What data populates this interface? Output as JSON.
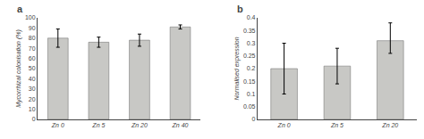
{
  "chart_data": [
    {
      "type": "bar",
      "title": "a",
      "categories": [
        "Zn 0",
        "Zn 5",
        "Zn 20",
        "Zn 40"
      ],
      "values": [
        80,
        76,
        78,
        91
      ],
      "errors": [
        9,
        5,
        6,
        2
      ],
      "ylabel": "Mycorrhizal colonisation (%)",
      "ylim": [
        0,
        100
      ],
      "yticks": [
        0,
        10,
        20,
        30,
        40,
        50,
        60,
        70,
        80,
        90,
        100
      ],
      "color": "#c8c8c5",
      "grid": false
    },
    {
      "type": "bar",
      "title": "b",
      "categories": [
        "Zn 0",
        "Zn 5",
        "Zn 20"
      ],
      "values": [
        0.2,
        0.21,
        0.31
      ],
      "errors_upper": [
        0.1,
        0.07,
        0.07
      ],
      "errors_lower": [
        0.1,
        0.07,
        0.05
      ],
      "ylabel": "Normalised expression",
      "ylim": [
        0,
        0.4
      ],
      "yticks": [
        0,
        0.05,
        0.1,
        0.15,
        0.2,
        0.25,
        0.3,
        0.35,
        0.4
      ],
      "color": "#c8c8c5",
      "grid": false
    }
  ]
}
